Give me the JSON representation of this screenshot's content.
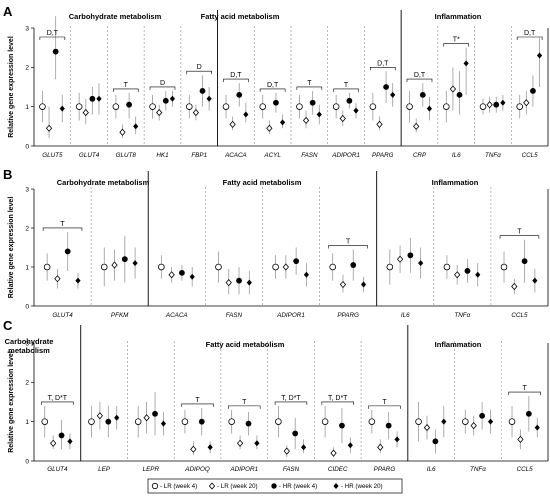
{
  "y_axis_label": "Relative gene expression level",
  "legend": [
    "LR (week 4)",
    "LR (week 20)",
    "HR (week 4)",
    "HR (week 20)"
  ],
  "chart_data": [
    {
      "type": "scatter",
      "panel": "A",
      "ylim": [
        0,
        3
      ],
      "yticks": [
        0,
        1,
        2,
        3
      ],
      "sections": [
        {
          "title": "Carbohydrate metabolism",
          "genes": [
            "GLUT5",
            "GLUT4",
            "GLUT8",
            "HK1",
            "FBP1"
          ]
        },
        {
          "title": "Fatty acid metabolism",
          "genes": [
            "ACACA",
            "ACYL",
            "FASN",
            "ADIPOR1",
            "PPARG"
          ]
        },
        {
          "title": "Inflammation",
          "genes": [
            "CRP",
            "IL6",
            "TNFα",
            "CCL5"
          ]
        }
      ],
      "genes": [
        {
          "name": "GLUT5",
          "sig": "D,T",
          "values": [
            1.0,
            0.45,
            2.4,
            0.95
          ],
          "err_hi": [
            1.4,
            1.0,
            3.3,
            1.3
          ],
          "err_lo": [
            0.6,
            0.2,
            1.7,
            0.6
          ]
        },
        {
          "name": "GLUT4",
          "sig": "",
          "values": [
            1.0,
            0.85,
            1.2,
            1.2
          ],
          "err_hi": [
            1.35,
            1.2,
            1.5,
            1.6
          ],
          "err_lo": [
            0.65,
            0.55,
            0.8,
            0.8
          ]
        },
        {
          "name": "GLUT8",
          "sig": "T",
          "values": [
            1.0,
            0.35,
            1.05,
            0.5
          ],
          "err_hi": [
            1.3,
            0.55,
            1.35,
            0.75
          ],
          "err_lo": [
            0.7,
            0.2,
            0.7,
            0.3
          ]
        },
        {
          "name": "HK1",
          "sig": "D",
          "values": [
            1.0,
            0.85,
            1.15,
            1.2
          ],
          "err_hi": [
            1.3,
            1.05,
            1.4,
            1.4
          ],
          "err_lo": [
            0.7,
            0.65,
            0.9,
            1.0
          ]
        },
        {
          "name": "FBP1",
          "sig": "D",
          "values": [
            1.0,
            0.85,
            1.4,
            1.2
          ],
          "err_hi": [
            1.3,
            1.05,
            1.8,
            1.5
          ],
          "err_lo": [
            0.7,
            0.65,
            1.0,
            0.9
          ]
        },
        {
          "name": "ACACA",
          "sig": "D,T",
          "values": [
            1.0,
            0.55,
            1.3,
            0.8
          ],
          "err_hi": [
            1.3,
            0.75,
            1.6,
            1.1
          ],
          "err_lo": [
            0.7,
            0.4,
            1.0,
            0.6
          ]
        },
        {
          "name": "ACYL",
          "sig": "D,T",
          "values": [
            1.0,
            0.45,
            1.1,
            0.6
          ],
          "err_hi": [
            1.3,
            0.65,
            1.35,
            0.8
          ],
          "err_lo": [
            0.7,
            0.3,
            0.85,
            0.45
          ]
        },
        {
          "name": "FASN",
          "sig": "T",
          "values": [
            1.0,
            0.65,
            1.1,
            0.8
          ],
          "err_hi": [
            1.3,
            0.9,
            1.4,
            1.05
          ],
          "err_lo": [
            0.7,
            0.45,
            0.8,
            0.55
          ]
        },
        {
          "name": "ADIPOR1",
          "sig": "T",
          "values": [
            1.0,
            0.7,
            1.15,
            0.9
          ],
          "err_hi": [
            1.3,
            0.9,
            1.35,
            1.1
          ],
          "err_lo": [
            0.7,
            0.5,
            0.95,
            0.7
          ]
        },
        {
          "name": "PPARG",
          "sig": "D,T",
          "values": [
            1.0,
            0.55,
            1.5,
            1.3
          ],
          "err_hi": [
            1.35,
            0.75,
            1.9,
            1.6
          ],
          "err_lo": [
            0.65,
            0.4,
            1.1,
            1.0
          ]
        },
        {
          "name": "CRP",
          "sig": "D,T",
          "values": [
            1.0,
            0.5,
            1.3,
            0.95
          ],
          "err_hi": [
            1.4,
            0.7,
            1.6,
            1.25
          ],
          "err_lo": [
            0.6,
            0.35,
            1.0,
            0.65
          ]
        },
        {
          "name": "IL6",
          "sig": "T*",
          "values": [
            1.0,
            1.45,
            1.3,
            2.1
          ],
          "err_hi": [
            1.4,
            2.0,
            1.9,
            2.5
          ],
          "err_lo": [
            0.6,
            0.9,
            0.8,
            1.3
          ]
        },
        {
          "name": "TNFα",
          "sig": "",
          "values": [
            1.0,
            1.05,
            1.05,
            1.1
          ],
          "err_hi": [
            1.2,
            1.25,
            1.25,
            1.3
          ],
          "err_lo": [
            0.8,
            0.85,
            0.85,
            0.9
          ]
        },
        {
          "name": "CCL5",
          "sig": "D,T",
          "values": [
            1.0,
            1.1,
            1.4,
            2.3
          ],
          "err_hi": [
            1.3,
            1.4,
            1.8,
            2.75
          ],
          "err_lo": [
            0.7,
            0.8,
            1.0,
            1.5
          ]
        }
      ]
    },
    {
      "type": "scatter",
      "panel": "B",
      "ylim": [
        0,
        3
      ],
      "yticks": [
        0,
        1,
        2,
        3
      ],
      "sections": [
        {
          "title": "Carbohydrate metabolism",
          "genes": [
            "GLUT4",
            "PFKM"
          ]
        },
        {
          "title": "Fatty acid metabolism",
          "genes": [
            "ACACA",
            "FASN",
            "ADIPOR1",
            "PPARG"
          ]
        },
        {
          "title": "Inflammation",
          "genes": [
            "IL6",
            "TNFα",
            "CCL5"
          ]
        }
      ],
      "genes": [
        {
          "name": "GLUT4",
          "sig": "T",
          "values": [
            1.0,
            0.7,
            1.4,
            0.65
          ],
          "err_hi": [
            1.35,
            0.95,
            1.9,
            0.85
          ],
          "err_lo": [
            0.65,
            0.45,
            0.9,
            0.45
          ]
        },
        {
          "name": "PFKM",
          "sig": "",
          "values": [
            1.0,
            1.05,
            1.2,
            1.1
          ],
          "err_hi": [
            1.5,
            1.45,
            1.8,
            1.5
          ],
          "err_lo": [
            0.5,
            0.65,
            0.6,
            0.7
          ]
        },
        {
          "name": "ACACA",
          "sig": "",
          "values": [
            1.0,
            0.8,
            0.85,
            0.75
          ],
          "err_hi": [
            1.3,
            1.0,
            1.05,
            1.0
          ],
          "err_lo": [
            0.7,
            0.6,
            0.65,
            0.5
          ]
        },
        {
          "name": "FASN",
          "sig": "",
          "values": [
            1.0,
            0.6,
            0.65,
            0.6
          ],
          "err_hi": [
            1.4,
            0.95,
            1.0,
            0.9
          ],
          "err_lo": [
            0.6,
            0.3,
            0.3,
            0.3
          ]
        },
        {
          "name": "ADIPOR1",
          "sig": "",
          "values": [
            1.0,
            1.0,
            1.15,
            0.8
          ],
          "err_hi": [
            1.3,
            1.3,
            1.5,
            1.1
          ],
          "err_lo": [
            0.7,
            0.7,
            0.8,
            0.5
          ]
        },
        {
          "name": "PPARG",
          "sig": "T",
          "values": [
            1.0,
            0.55,
            1.05,
            0.55
          ],
          "err_hi": [
            1.35,
            0.8,
            1.45,
            0.75
          ],
          "err_lo": [
            0.65,
            0.35,
            0.65,
            0.35
          ]
        },
        {
          "name": "IL6",
          "sig": "",
          "values": [
            1.0,
            1.2,
            1.3,
            1.1
          ],
          "err_hi": [
            1.45,
            1.55,
            1.75,
            1.5
          ],
          "err_lo": [
            0.55,
            0.85,
            0.85,
            0.7
          ]
        },
        {
          "name": "TNFα",
          "sig": "",
          "values": [
            1.0,
            0.8,
            0.9,
            0.8
          ],
          "err_hi": [
            1.3,
            1.05,
            1.2,
            1.1
          ],
          "err_lo": [
            0.7,
            0.55,
            0.6,
            0.5
          ]
        },
        {
          "name": "CCL5",
          "sig": "T",
          "values": [
            1.0,
            0.5,
            1.15,
            0.65
          ],
          "err_hi": [
            1.4,
            0.7,
            1.7,
            0.95
          ],
          "err_lo": [
            0.6,
            0.3,
            0.6,
            0.35
          ]
        }
      ]
    },
    {
      "type": "scatter",
      "panel": "C",
      "ylim": [
        0,
        3
      ],
      "yticks": [
        0,
        1,
        2,
        3
      ],
      "sections": [
        {
          "title": "Carbohydrate metabolism",
          "genes": [
            "GLUT4"
          ]
        },
        {
          "title": "Fatty acid metabolism",
          "genes": [
            "LEP",
            "LEPR",
            "ADIPOQ",
            "ADIPOR1",
            "FASN",
            "CIDEC",
            "PPARG"
          ]
        },
        {
          "title": "Inflammation",
          "genes": [
            "IL6",
            "TNFα",
            "CCL5"
          ]
        }
      ],
      "genes": [
        {
          "name": "GLUT4",
          "sig": "T, D*T",
          "values": [
            1.0,
            0.45,
            0.65,
            0.5
          ],
          "err_hi": [
            1.4,
            0.65,
            1.05,
            0.7
          ],
          "err_lo": [
            0.6,
            0.3,
            0.3,
            0.3
          ]
        },
        {
          "name": "LEP",
          "sig": "",
          "values": [
            1.0,
            1.15,
            1.0,
            1.1
          ],
          "err_hi": [
            1.4,
            1.5,
            1.4,
            1.4
          ],
          "err_lo": [
            0.6,
            0.8,
            0.6,
            0.8
          ]
        },
        {
          "name": "LEPR",
          "sig": "",
          "values": [
            1.0,
            1.1,
            1.2,
            0.95
          ],
          "err_hi": [
            1.4,
            1.5,
            1.75,
            1.25
          ],
          "err_lo": [
            0.6,
            0.7,
            0.65,
            0.65
          ]
        },
        {
          "name": "ADIPOQ",
          "sig": "T",
          "values": [
            1.0,
            0.3,
            1.0,
            0.35
          ],
          "err_hi": [
            1.3,
            0.5,
            1.35,
            0.5
          ],
          "err_lo": [
            0.7,
            0.15,
            0.65,
            0.2
          ]
        },
        {
          "name": "ADIPOR1",
          "sig": "T",
          "values": [
            1.0,
            0.45,
            0.95,
            0.45
          ],
          "err_hi": [
            1.3,
            0.65,
            1.25,
            0.65
          ],
          "err_lo": [
            0.7,
            0.3,
            0.65,
            0.3
          ]
        },
        {
          "name": "FASN",
          "sig": "T, D*T",
          "values": [
            1.0,
            0.25,
            0.7,
            0.35
          ],
          "err_hi": [
            1.4,
            0.4,
            1.1,
            0.55
          ],
          "err_lo": [
            0.6,
            0.1,
            0.3,
            0.2
          ]
        },
        {
          "name": "CIDEC",
          "sig": "T, D*T",
          "values": [
            1.0,
            0.2,
            0.9,
            0.4
          ],
          "err_hi": [
            1.4,
            0.35,
            1.35,
            0.6
          ],
          "err_lo": [
            0.6,
            0.1,
            0.45,
            0.2
          ]
        },
        {
          "name": "PPARG",
          "sig": "T",
          "values": [
            1.0,
            0.35,
            0.9,
            0.55
          ],
          "err_hi": [
            1.3,
            0.55,
            1.25,
            0.75
          ],
          "err_lo": [
            0.7,
            0.2,
            0.55,
            0.35
          ]
        },
        {
          "name": "IL6",
          "sig": "",
          "values": [
            1.0,
            0.85,
            0.5,
            1.0
          ],
          "err_hi": [
            1.5,
            1.15,
            0.8,
            1.4
          ],
          "err_lo": [
            0.5,
            0.55,
            0.2,
            0.6
          ]
        },
        {
          "name": "TNFα",
          "sig": "",
          "values": [
            1.0,
            0.9,
            1.15,
            1.0
          ],
          "err_hi": [
            1.3,
            1.15,
            1.5,
            1.3
          ],
          "err_lo": [
            0.7,
            0.65,
            0.8,
            0.7
          ]
        },
        {
          "name": "CCL5",
          "sig": "T",
          "values": [
            1.0,
            0.55,
            1.2,
            0.85
          ],
          "err_hi": [
            1.4,
            0.8,
            1.65,
            1.1
          ],
          "err_lo": [
            0.6,
            0.3,
            0.75,
            0.6
          ]
        }
      ]
    }
  ]
}
